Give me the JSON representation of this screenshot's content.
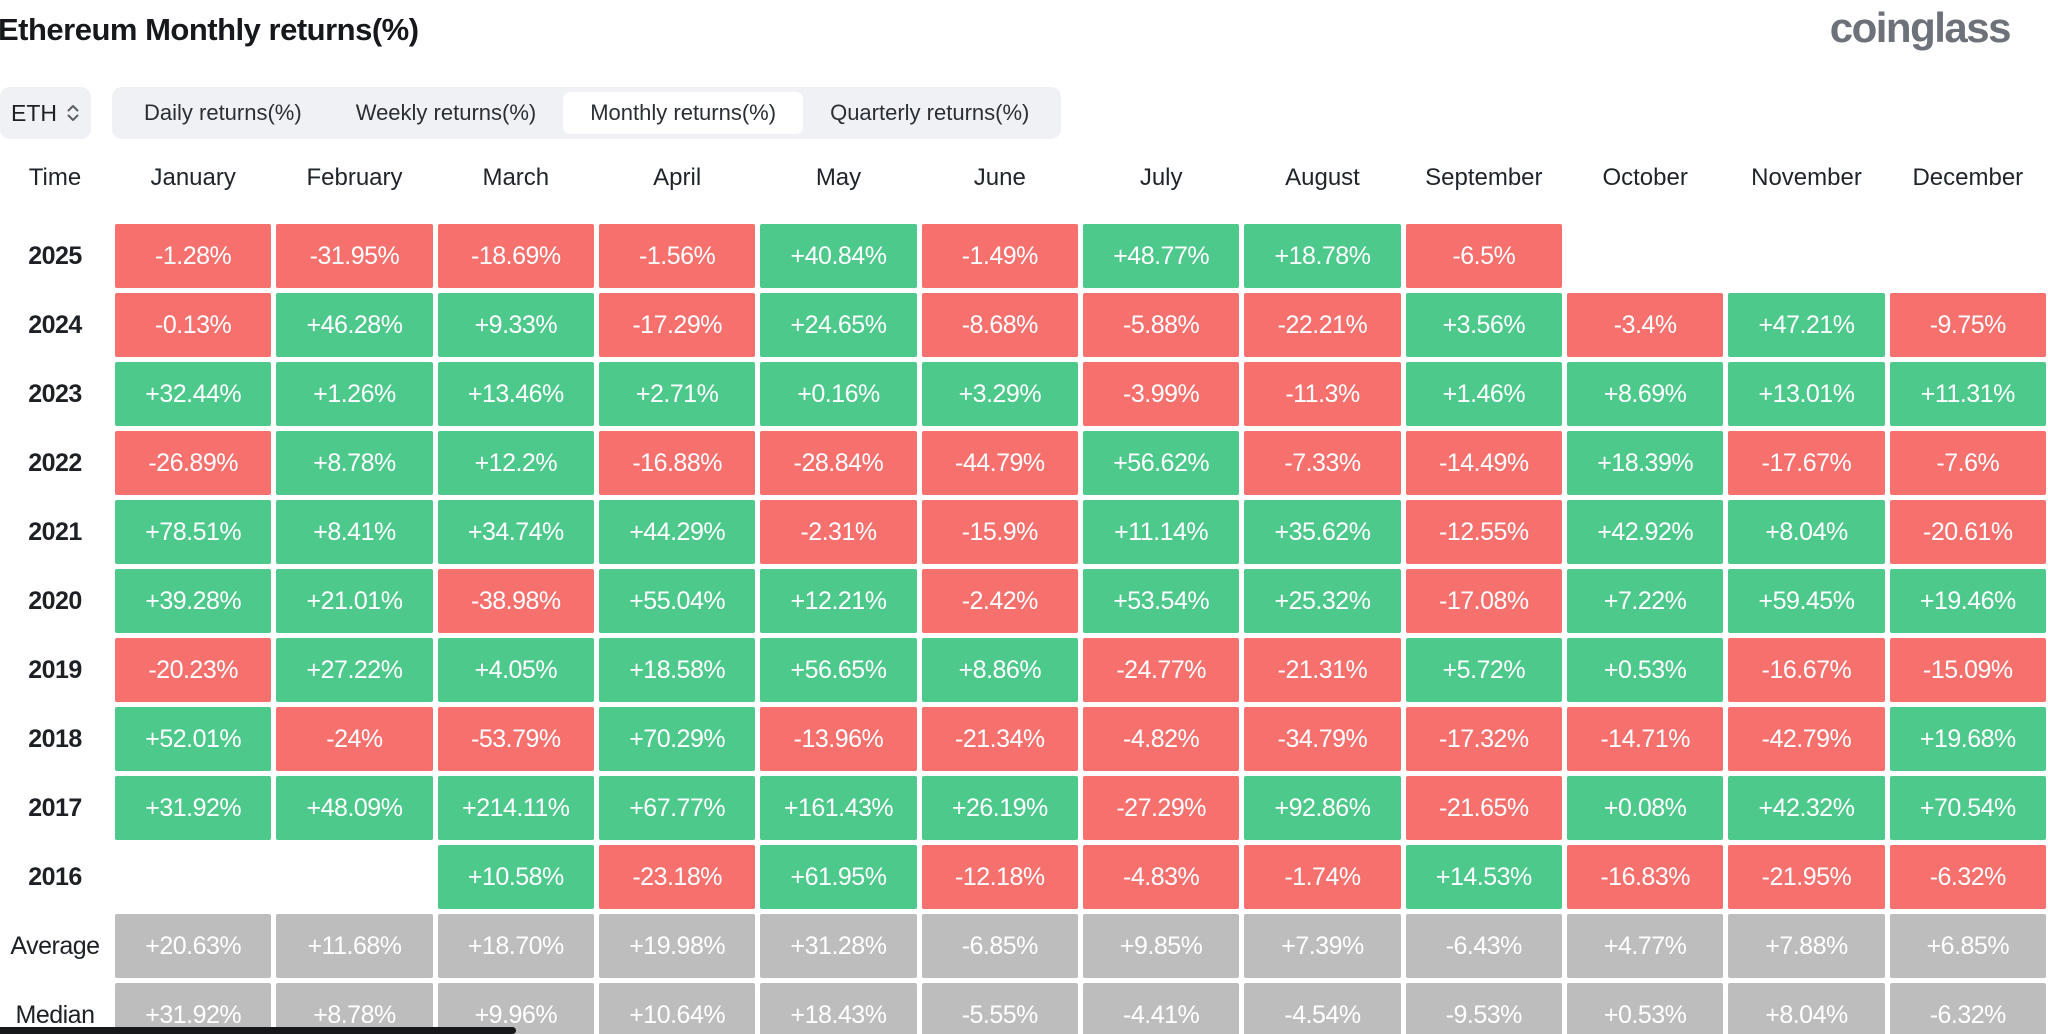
{
  "page": {
    "title": "Ethereum Monthly returns(%)",
    "brand": "coinglass"
  },
  "controls": {
    "symbol": {
      "value": "ETH"
    },
    "tabs": [
      {
        "label": "Daily returns(%)",
        "active": false
      },
      {
        "label": "Weekly returns(%)",
        "active": false
      },
      {
        "label": "Monthly returns(%)",
        "active": true
      },
      {
        "label": "Quarterly returns(%)",
        "active": false
      }
    ]
  },
  "chart_data": {
    "type": "heatmap",
    "title": "Ethereum Monthly returns(%)",
    "unit": "%",
    "col_headers": [
      "Time",
      "January",
      "February",
      "March",
      "April",
      "May",
      "June",
      "July",
      "August",
      "September",
      "October",
      "November",
      "December"
    ],
    "rows": [
      {
        "label": "2025",
        "summary": false,
        "values": [
          "-1.28%",
          "-31.95%",
          "-18.69%",
          "-1.56%",
          "+40.84%",
          "-1.49%",
          "+48.77%",
          "+18.78%",
          "-6.5%",
          null,
          null,
          null
        ]
      },
      {
        "label": "2024",
        "summary": false,
        "values": [
          "-0.13%",
          "+46.28%",
          "+9.33%",
          "-17.29%",
          "+24.65%",
          "-8.68%",
          "-5.88%",
          "-22.21%",
          "+3.56%",
          "-3.4%",
          "+47.21%",
          "-9.75%"
        ]
      },
      {
        "label": "2023",
        "summary": false,
        "values": [
          "+32.44%",
          "+1.26%",
          "+13.46%",
          "+2.71%",
          "+0.16%",
          "+3.29%",
          "-3.99%",
          "-11.3%",
          "+1.46%",
          "+8.69%",
          "+13.01%",
          "+11.31%"
        ]
      },
      {
        "label": "2022",
        "summary": false,
        "values": [
          "-26.89%",
          "+8.78%",
          "+12.2%",
          "-16.88%",
          "-28.84%",
          "-44.79%",
          "+56.62%",
          "-7.33%",
          "-14.49%",
          "+18.39%",
          "-17.67%",
          "-7.6%"
        ]
      },
      {
        "label": "2021",
        "summary": false,
        "values": [
          "+78.51%",
          "+8.41%",
          "+34.74%",
          "+44.29%",
          "-2.31%",
          "-15.9%",
          "+11.14%",
          "+35.62%",
          "-12.55%",
          "+42.92%",
          "+8.04%",
          "-20.61%"
        ]
      },
      {
        "label": "2020",
        "summary": false,
        "values": [
          "+39.28%",
          "+21.01%",
          "-38.98%",
          "+55.04%",
          "+12.21%",
          "-2.42%",
          "+53.54%",
          "+25.32%",
          "-17.08%",
          "+7.22%",
          "+59.45%",
          "+19.46%"
        ]
      },
      {
        "label": "2019",
        "summary": false,
        "values": [
          "-20.23%",
          "+27.22%",
          "+4.05%",
          "+18.58%",
          "+56.65%",
          "+8.86%",
          "-24.77%",
          "-21.31%",
          "+5.72%",
          "+0.53%",
          "-16.67%",
          "-15.09%"
        ]
      },
      {
        "label": "2018",
        "summary": false,
        "values": [
          "+52.01%",
          "-24%",
          "-53.79%",
          "+70.29%",
          "-13.96%",
          "-21.34%",
          "-4.82%",
          "-34.79%",
          "-17.32%",
          "-14.71%",
          "-42.79%",
          "+19.68%"
        ]
      },
      {
        "label": "2017",
        "summary": false,
        "values": [
          "+31.92%",
          "+48.09%",
          "+214.11%",
          "+67.77%",
          "+161.43%",
          "+26.19%",
          "-27.29%",
          "+92.86%",
          "-21.65%",
          "+0.08%",
          "+42.32%",
          "+70.54%"
        ]
      },
      {
        "label": "2016",
        "summary": false,
        "values": [
          null,
          null,
          "+10.58%",
          "-23.18%",
          "+61.95%",
          "-12.18%",
          "-4.83%",
          "-1.74%",
          "+14.53%",
          "-16.83%",
          "-21.95%",
          "-6.32%"
        ]
      },
      {
        "label": "Average",
        "summary": true,
        "values": [
          "+20.63%",
          "+11.68%",
          "+18.70%",
          "+19.98%",
          "+31.28%",
          "-6.85%",
          "+9.85%",
          "+7.39%",
          "-6.43%",
          "+4.77%",
          "+7.88%",
          "+6.85%"
        ]
      },
      {
        "label": "Median",
        "summary": true,
        "values": [
          "+31.92%",
          "+8.78%",
          "+9.96%",
          "+10.64%",
          "+18.43%",
          "-5.55%",
          "-4.41%",
          "-4.54%",
          "-9.53%",
          "+0.53%",
          "+8.04%",
          "-6.32%"
        ]
      }
    ],
    "colors": {
      "positive": "#4dc98c",
      "negative": "#f6706e",
      "neutral": "#bdbdbd",
      "text_on_cell": "#ffffff"
    },
    "legend": "green = positive monthly return, red = negative monthly return, gray = summary statistics",
    "grid": false
  }
}
